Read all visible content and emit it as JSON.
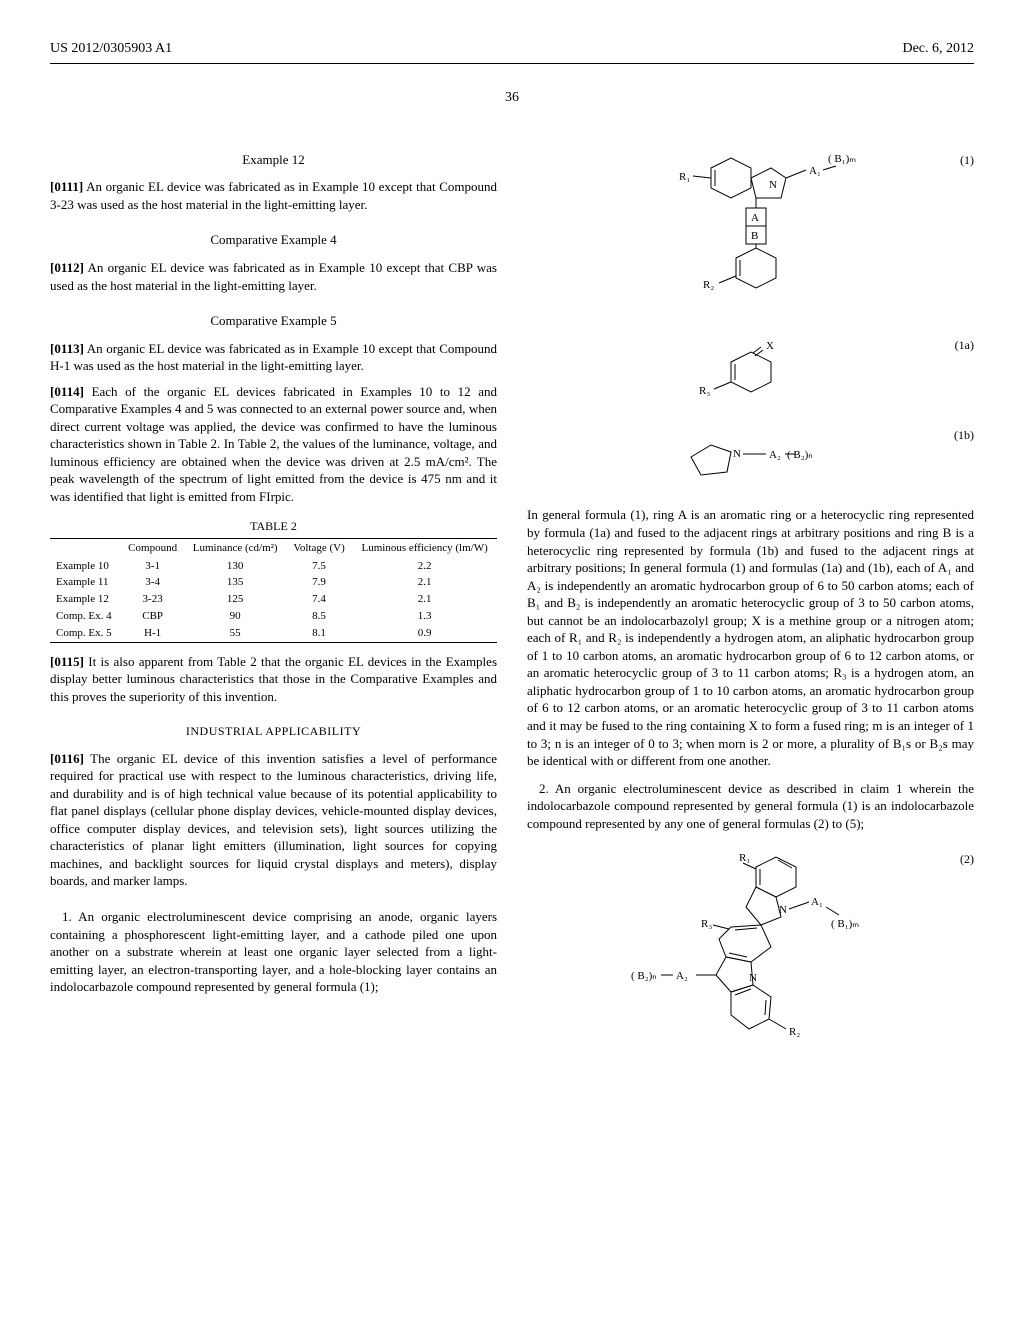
{
  "header": {
    "left": "US 2012/0305903 A1",
    "right": "Dec. 6, 2012"
  },
  "page_number": "36",
  "left_col": {
    "example12_heading": "Example 12",
    "p0111_num": "[0111]",
    "p0111": "An organic EL device was fabricated as in Example 10 except that Compound 3-23 was used as the host material in the light-emitting layer.",
    "comp4_heading": "Comparative Example 4",
    "p0112_num": "[0112]",
    "p0112": "An organic EL device was fabricated as in Example 10 except that CBP was used as the host material in the light-emitting layer.",
    "comp5_heading": "Comparative Example 5",
    "p0113_num": "[0113]",
    "p0113": "An organic EL device was fabricated as in Example 10 except that Compound H-1 was used as the host material in the light-emitting layer.",
    "p0114_num": "[0114]",
    "p0114": "Each of the organic EL devices fabricated in Examples 10 to 12 and Comparative Examples 4 and 5 was connected to an external power source and, when direct current voltage was applied, the device was confirmed to have the luminous characteristics shown in Table 2. In Table 2, the values of the luminance, voltage, and luminous efficiency are obtained when the device was driven at 2.5 mA/cm². The peak wavelength of the spectrum of light emitted from the device is 475 nm and it was identified that light is emitted from FIrpic.",
    "table2_title": "TABLE 2",
    "table2": {
      "columns": [
        "",
        "Compound",
        "Luminance (cd/m²)",
        "Voltage (V)",
        "Luminous efficiency (lm/W)"
      ],
      "rows": [
        [
          "Example 10",
          "3-1",
          "130",
          "7.5",
          "2.2"
        ],
        [
          "Example 11",
          "3-4",
          "135",
          "7.9",
          "2.1"
        ],
        [
          "Example 12",
          "3-23",
          "125",
          "7.4",
          "2.1"
        ],
        [
          "Comp. Ex. 4",
          "CBP",
          "90",
          "8.5",
          "1.3"
        ],
        [
          "Comp. Ex. 5",
          "H-1",
          "55",
          "8.1",
          "0.9"
        ]
      ]
    },
    "p0115_num": "[0115]",
    "p0115": "It is also apparent from Table 2 that the organic EL devices in the Examples display better luminous characteristics that those in the Comparative Examples and this proves the superiority of this invention.",
    "industrial_heading": "INDUSTRIAL APPLICABILITY",
    "p0116_num": "[0116]",
    "p0116": "The organic EL device of this invention satisfies a level of performance required for practical use with respect to the luminous characteristics, driving life, and durability and is of high technical value because of its potential applicability to flat panel displays (cellular phone display devices, vehicle-mounted display devices, office computer display devices, and television sets), light sources utilizing the characteristics of planar light emitters (illumination, light sources for copying machines, and backlight sources for liquid crystal displays and meters), display boards, and marker lamps.",
    "claim1": "1. An organic electroluminescent device comprising an anode, organic layers containing a phosphorescent light-emitting layer, and a cathode piled one upon another on a substrate wherein at least one organic layer selected from a light-emitting layer, an electron-transporting layer, and a hole-blocking layer contains an indolocarbazole compound represented by general formula (1);"
  },
  "right_col": {
    "formula1_label": "(1)",
    "formula1a_label": "(1a)",
    "formula1b_label": "(1b)",
    "formula2_label": "(2)",
    "formula1_text": "In general formula (1), ring A is an aromatic ring or a heterocyclic ring represented by formula (1a) and fused to the adjacent rings at arbitrary positions and ring B is a heterocyclic ring represented by formula (1b) and fused to the adjacent rings at arbitrary positions; In general formula (1) and formulas (1a) and (1b), each of A₁ and A₂ is independently an aromatic hydrocarbon group of 6 to 50 carbon atoms; each of B₁ and B₂ is independently an aromatic heterocyclic group of 3 to 50 carbon atoms, but cannot be an indolocarbazolyl group; X is a methine group or a nitrogen atom; each of R₁ and R₂ is independently a hydrogen atom, an aliphatic hydrocarbon group of 1 to 10 carbon atoms, an aromatic hydrocarbon group of 6 to 12 carbon atoms, or an aromatic heterocyclic group of 3 to 11 carbon atoms; R₃ is a hydrogen atom, an aliphatic hydrocarbon group of 1 to 10 carbon atoms, an aromatic hydrocarbon group of 6 to 12 carbon atoms, or an aromatic heterocyclic group of 3 to 11 carbon atoms and it may be fused to the ring containing X to form a fused ring; m is an integer of 1 to 3; n is an integer of 0 to 3; when morn is 2 or more, a plurality of B₁s or B₂s may be identical with or different from one another.",
    "claim2": "2. An organic electroluminescent device as described in claim 1 wherein the indolocarbazole compound represented by general formula (1) is an indolocarbazole compound represented by any one of general formulas (2) to (5);"
  }
}
